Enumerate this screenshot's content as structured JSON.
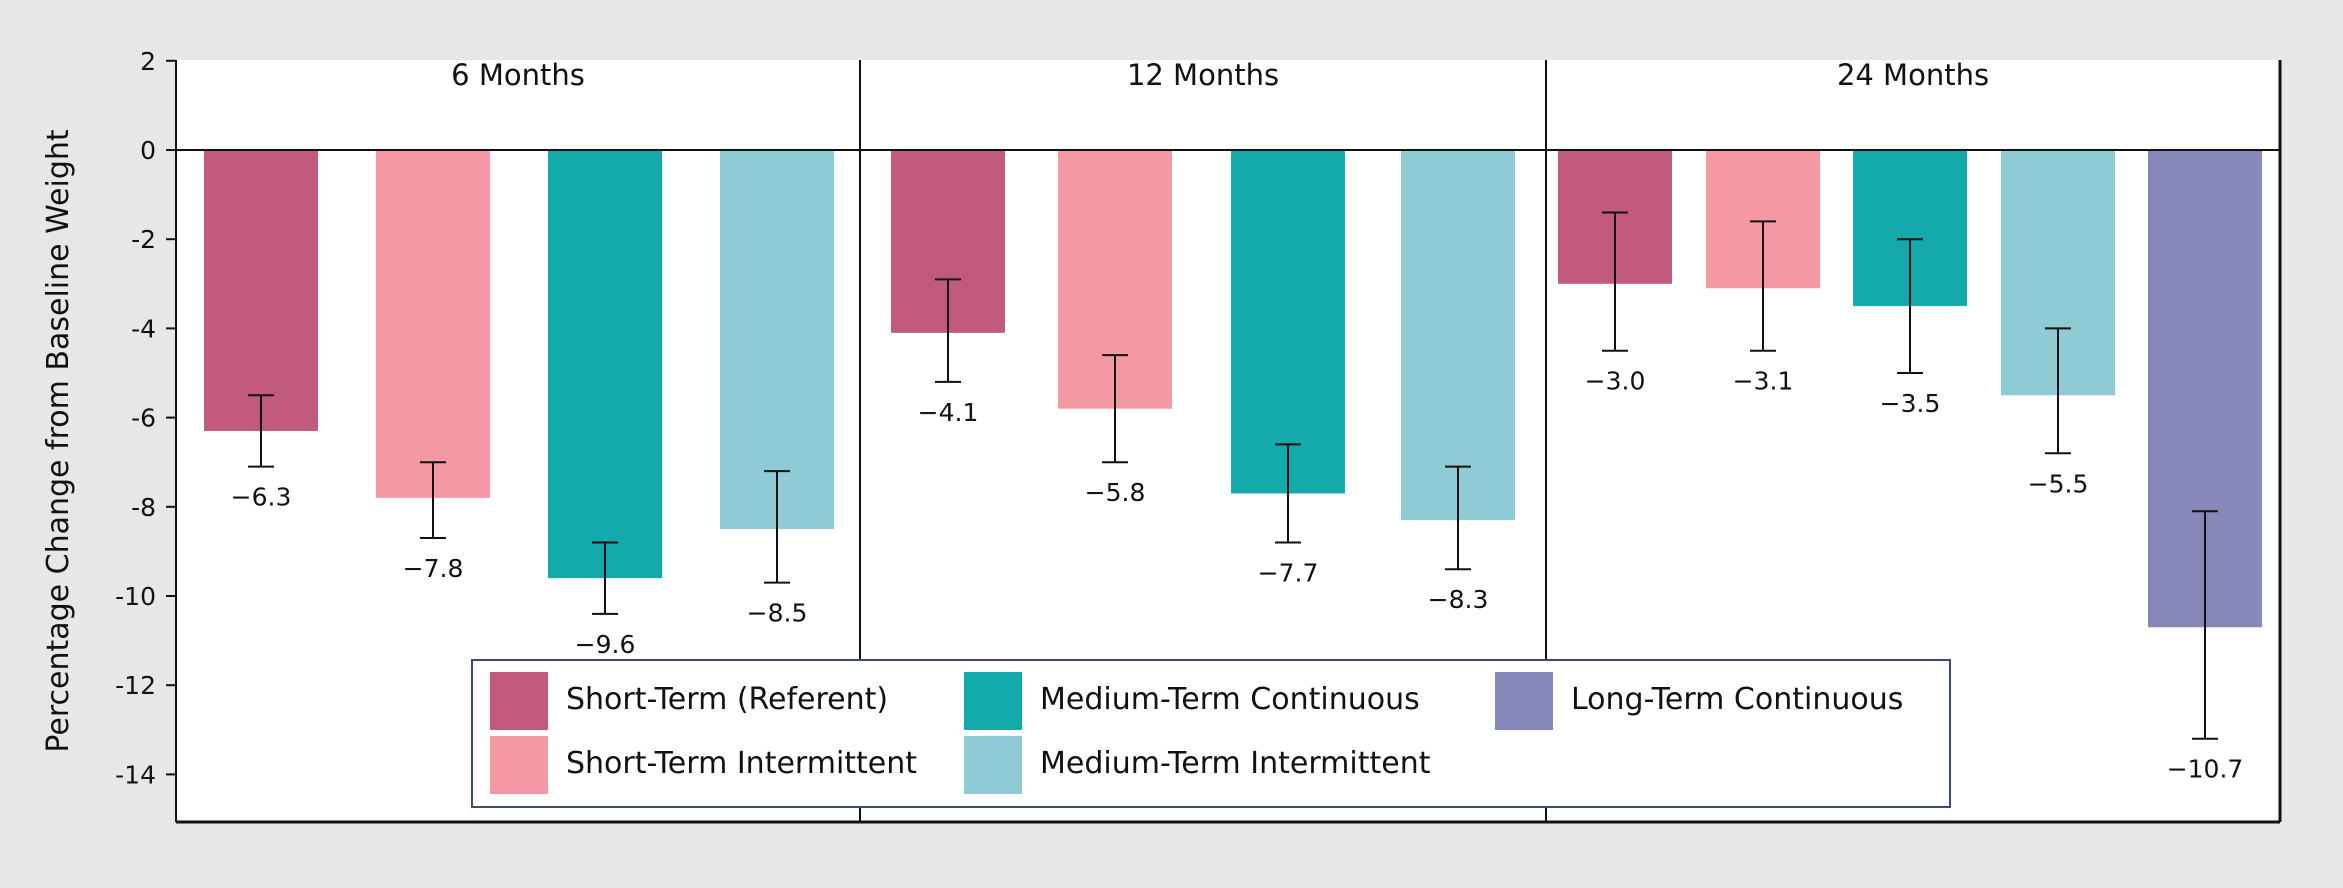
{
  "chart_data": {
    "type": "bar",
    "ylabel": "Percentage Change from Baseline Weight",
    "ylim": [
      -15,
      2
    ],
    "yticks": [
      2,
      0,
      -2,
      -4,
      -6,
      -8,
      -10,
      -12,
      -14
    ],
    "grid": false,
    "legend_position": "bottom-center",
    "series": [
      {
        "key": "st_ref",
        "name": "Short-Term (Referent)",
        "color": "#c2597e"
      },
      {
        "key": "st_int",
        "name": "Short-Term Intermittent",
        "color": "#f498a3"
      },
      {
        "key": "mt_cont",
        "name": "Medium-Term Continuous",
        "color": "#14aaab"
      },
      {
        "key": "mt_int",
        "name": "Medium-Term Intermittent",
        "color": "#8ecbd4"
      },
      {
        "key": "lt_cont",
        "name": "Long-Term Continuous",
        "color": "#8788b9"
      }
    ],
    "panels": [
      {
        "title": "6 Months",
        "bars": [
          {
            "series": "st_ref",
            "value": -6.3,
            "err_low": -7.1,
            "err_high": -5.5,
            "label": "−6.3"
          },
          {
            "series": "st_int",
            "value": -7.8,
            "err_low": -8.7,
            "err_high": -7.0,
            "label": "−7.8"
          },
          {
            "series": "mt_cont",
            "value": -9.6,
            "err_low": -10.4,
            "err_high": -8.8,
            "label": "−9.6"
          },
          {
            "series": "mt_int",
            "value": -8.5,
            "err_low": -9.7,
            "err_high": -7.2,
            "label": "−8.5"
          }
        ]
      },
      {
        "title": "12 Months",
        "bars": [
          {
            "series": "st_ref",
            "value": -4.1,
            "err_low": -5.2,
            "err_high": -2.9,
            "label": "−4.1"
          },
          {
            "series": "st_int",
            "value": -5.8,
            "err_low": -7.0,
            "err_high": -4.6,
            "label": "−5.8"
          },
          {
            "series": "mt_cont",
            "value": -7.7,
            "err_low": -8.8,
            "err_high": -6.6,
            "label": "−7.7"
          },
          {
            "series": "mt_int",
            "value": -8.3,
            "err_low": -9.4,
            "err_high": -7.1,
            "label": "−8.3"
          }
        ]
      },
      {
        "title": "24 Months",
        "bars": [
          {
            "series": "st_ref",
            "value": -3.0,
            "err_low": -4.5,
            "err_high": -1.4,
            "label": "−3.0"
          },
          {
            "series": "st_int",
            "value": -3.1,
            "err_low": -4.5,
            "err_high": -1.6,
            "label": "−3.1"
          },
          {
            "series": "mt_cont",
            "value": -3.5,
            "err_low": -5.0,
            "err_high": -2.0,
            "label": "−3.5"
          },
          {
            "series": "mt_int",
            "value": -5.5,
            "err_low": -6.8,
            "err_high": -4.0,
            "label": "−5.5"
          },
          {
            "series": "lt_cont",
            "value": -10.7,
            "err_low": -13.2,
            "err_high": -8.1,
            "label": "−10.7"
          }
        ]
      }
    ]
  }
}
